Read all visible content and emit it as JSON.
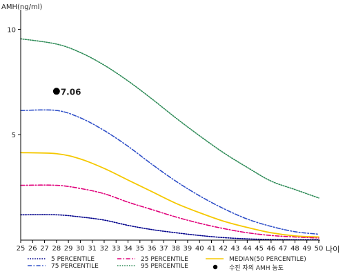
{
  "chart_data": {
    "type": "line",
    "ylabel": "AMH(ng/ml)",
    "xlabel": "나이",
    "xlim": [
      25,
      50
    ],
    "ylim": [
      0,
      10.8
    ],
    "x_ticks": [
      "25",
      "26",
      "27",
      "28",
      "29",
      "30",
      "31",
      "32",
      "33",
      "34",
      "35",
      "36",
      "37",
      "38",
      "39",
      "40",
      "41",
      "42",
      "43",
      "44",
      "45",
      "46",
      "47",
      "48",
      "49",
      "50"
    ],
    "y_ticks": [
      "5",
      "10"
    ],
    "grid": false,
    "legend_position": "bottom",
    "series": [
      {
        "name": "5 PERCENTILE",
        "color": "#00008b",
        "style": "dotted",
        "x": [
          25,
          28,
          30,
          32,
          34,
          36,
          38,
          40,
          42,
          44,
          46,
          48,
          50
        ],
        "y": [
          1.2,
          1.2,
          1.1,
          0.95,
          0.7,
          0.5,
          0.35,
          0.22,
          0.12,
          0.06,
          0.03,
          0.02,
          0.02
        ]
      },
      {
        "name": "25 PERCENTILE",
        "color": "#e0007a",
        "style": "dashdot",
        "x": [
          25,
          28,
          30,
          32,
          34,
          36,
          38,
          40,
          42,
          44,
          46,
          48,
          50
        ],
        "y": [
          2.6,
          2.6,
          2.45,
          2.2,
          1.8,
          1.45,
          1.1,
          0.8,
          0.55,
          0.35,
          0.22,
          0.15,
          0.1
        ]
      },
      {
        "name": "MEDIAN(50 PERCENTILE)",
        "color": "#f5c800",
        "style": "solid",
        "x": [
          25,
          28,
          30,
          32,
          34,
          36,
          38,
          40,
          42,
          44,
          46,
          48,
          50
        ],
        "y": [
          4.15,
          4.1,
          3.85,
          3.4,
          2.85,
          2.3,
          1.75,
          1.3,
          0.9,
          0.6,
          0.35,
          0.2,
          0.15
        ]
      },
      {
        "name": "75 PERCENTILE",
        "color": "#3050c8",
        "style": "dashdot",
        "x": [
          25,
          28,
          30,
          32,
          34,
          36,
          38,
          40,
          42,
          44,
          46,
          48,
          50
        ],
        "y": [
          6.15,
          6.15,
          5.8,
          5.2,
          4.45,
          3.6,
          2.8,
          2.1,
          1.5,
          1.0,
          0.65,
          0.4,
          0.28
        ]
      },
      {
        "name": "95 PERCENTILE",
        "color": "#2e8b57",
        "style": "dotted",
        "x": [
          25,
          28,
          30,
          32,
          34,
          36,
          38,
          40,
          42,
          44,
          46,
          48,
          50
        ],
        "y": [
          9.55,
          9.3,
          8.9,
          8.3,
          7.55,
          6.7,
          5.8,
          4.95,
          4.15,
          3.45,
          2.8,
          2.4,
          2.0
        ]
      }
    ],
    "point": {
      "name": "수진 자의 AMH 농도",
      "x": 28,
      "y": 7.06,
      "label": "7.06",
      "color": "#000000"
    }
  }
}
